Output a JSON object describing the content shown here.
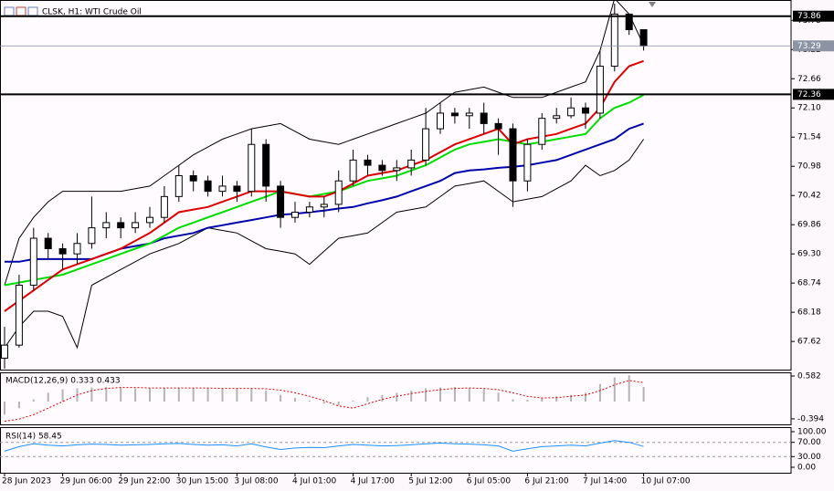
{
  "header": {
    "title": "CLSK, H1: WTI Crude Oil"
  },
  "chart_data": [
    {
      "type": "candlestick",
      "categories": [
        "28 Jun 2023",
        null,
        null,
        null,
        "29 Jun 06:00",
        null,
        null,
        null,
        "29 Jun 22:00",
        null,
        null,
        null,
        "30 Jun 15:00",
        null,
        null,
        null,
        "3 Jul 08:00",
        null,
        null,
        null,
        "4 Jul 01:00",
        null,
        null,
        null,
        "4 Jul 17:00",
        null,
        null,
        null,
        "5 Jul 12:00",
        null,
        null,
        null,
        "6 Jul 05:00",
        null,
        null,
        null,
        "6 Jul 21:00",
        null,
        null,
        null,
        "7 Jul 14:00",
        null,
        null,
        null,
        "10 Jul 07:00"
      ],
      "open": [
        67.3,
        67.55,
        68.7,
        69.6,
        69.4,
        69.3,
        69.5,
        69.8,
        69.9,
        69.8,
        69.9,
        70.0,
        70.4,
        70.8,
        70.7,
        70.5,
        70.6,
        70.5,
        71.4,
        70.6,
        70.0,
        70.1,
        70.2,
        70.25,
        70.7,
        71.1,
        71.0,
        70.9,
        70.95,
        71.1,
        71.7,
        72.0,
        71.95,
        72.0,
        71.8,
        71.7,
        70.7,
        71.4,
        71.9,
        71.95,
        72.1,
        72.0,
        72.9,
        73.9,
        73.6
      ],
      "high": [
        67.9,
        68.9,
        69.8,
        69.7,
        69.5,
        69.7,
        70.4,
        70.1,
        70.0,
        70.1,
        70.2,
        70.6,
        71.0,
        70.9,
        70.8,
        70.8,
        70.7,
        71.7,
        71.5,
        70.7,
        70.3,
        70.3,
        70.4,
        70.9,
        71.3,
        71.2,
        71.1,
        71.1,
        71.3,
        72.1,
        72.2,
        72.1,
        72.1,
        72.2,
        71.9,
        71.8,
        71.5,
        72.0,
        72.1,
        72.3,
        72.2,
        73.2,
        74.1,
        73.9,
        73.6
      ],
      "low": [
        67.1,
        67.5,
        68.6,
        69.2,
        69.0,
        69.1,
        69.4,
        69.6,
        69.6,
        69.7,
        69.8,
        69.9,
        70.3,
        70.5,
        70.4,
        70.4,
        70.3,
        70.4,
        70.3,
        69.8,
        69.9,
        70.0,
        70.0,
        70.1,
        70.6,
        70.8,
        70.8,
        70.7,
        70.8,
        71.0,
        71.6,
        71.8,
        71.7,
        71.6,
        71.2,
        70.2,
        70.5,
        71.3,
        71.8,
        71.9,
        71.7,
        71.9,
        72.8,
        73.5,
        73.2
      ],
      "close": [
        67.55,
        68.7,
        69.6,
        69.4,
        69.3,
        69.5,
        69.8,
        69.9,
        69.8,
        69.9,
        70.0,
        70.4,
        70.8,
        70.7,
        70.5,
        70.6,
        70.5,
        71.4,
        70.6,
        70.0,
        70.1,
        70.2,
        70.25,
        70.7,
        71.1,
        71.0,
        70.9,
        70.95,
        71.1,
        71.7,
        72.0,
        71.95,
        72.0,
        71.8,
        71.7,
        70.7,
        71.4,
        71.9,
        71.95,
        72.1,
        72.0,
        72.9,
        73.9,
        73.6,
        73.29
      ],
      "series": [
        {
          "color": "#000000",
          "values": [
            68.7,
            69.6,
            70.0,
            70.3,
            70.5,
            70.5,
            70.5,
            70.5,
            70.5,
            70.55,
            70.6,
            70.8,
            71.0,
            71.2,
            71.35,
            71.5,
            71.6,
            71.7,
            71.75,
            71.8,
            71.65,
            71.5,
            71.45,
            71.4,
            71.5,
            71.6,
            71.7,
            71.8,
            71.9,
            72.0,
            72.2,
            72.4,
            72.45,
            72.5,
            72.4,
            72.3,
            72.3,
            72.3,
            72.4,
            72.5,
            72.6,
            73.2,
            74.2,
            73.9,
            73.3
          ]
        },
        {
          "color": "#000000",
          "values": [
            67.5,
            67.9,
            68.2,
            68.2,
            68.1,
            67.5,
            68.7,
            68.85,
            69.0,
            69.15,
            69.3,
            69.4,
            69.5,
            69.65,
            69.8,
            69.75,
            69.7,
            69.55,
            69.4,
            69.35,
            69.3,
            69.1,
            69.35,
            69.6,
            69.65,
            69.7,
            69.9,
            70.1,
            70.15,
            70.2,
            70.4,
            70.6,
            70.65,
            70.7,
            70.5,
            70.3,
            70.35,
            70.4,
            70.55,
            70.7,
            71.0,
            70.8,
            70.9,
            71.1,
            71.5
          ]
        },
        {
          "color": "#0000aa",
          "values": [
            69.15,
            69.15,
            69.2,
            69.2,
            69.2,
            69.2,
            69.2,
            69.3,
            69.4,
            69.45,
            69.5,
            69.6,
            69.65,
            69.7,
            69.8,
            69.85,
            69.9,
            69.95,
            70.0,
            70.05,
            70.07,
            70.1,
            70.13,
            70.17,
            70.2,
            70.27,
            70.33,
            70.4,
            70.5,
            70.6,
            70.7,
            70.85,
            70.9,
            70.92,
            70.95,
            70.97,
            71.0,
            71.05,
            71.1,
            71.2,
            71.3,
            71.4,
            71.5,
            71.7,
            71.8
          ]
        },
        {
          "color": "#00dd00",
          "values": [
            68.7,
            68.75,
            68.8,
            68.85,
            68.9,
            69.0,
            69.1,
            69.2,
            69.3,
            69.4,
            69.5,
            69.65,
            69.8,
            69.9,
            70.0,
            70.1,
            70.2,
            70.3,
            70.4,
            70.5,
            70.45,
            70.4,
            70.45,
            70.5,
            70.6,
            70.7,
            70.75,
            70.8,
            70.9,
            71.0,
            71.15,
            71.3,
            71.4,
            71.45,
            71.5,
            71.45,
            71.4,
            71.45,
            71.5,
            71.55,
            71.6,
            71.9,
            72.1,
            72.2,
            72.35
          ]
        },
        {
          "color": "#dd0000",
          "values": [
            68.2,
            68.4,
            68.6,
            68.8,
            69.0,
            69.1,
            69.2,
            69.3,
            69.4,
            69.55,
            69.7,
            69.9,
            70.1,
            70.15,
            70.2,
            70.3,
            70.4,
            70.5,
            70.5,
            70.5,
            70.45,
            70.4,
            70.4,
            70.5,
            70.65,
            70.8,
            70.85,
            70.9,
            71.0,
            71.1,
            71.25,
            71.4,
            71.5,
            71.6,
            71.7,
            71.4,
            71.5,
            71.55,
            71.6,
            71.7,
            71.8,
            72.1,
            72.6,
            72.9,
            73.0
          ]
        }
      ],
      "ylim": [
        67.08,
        74.17
      ],
      "yticks": [
        67.62,
        68.18,
        68.74,
        {
          "value": 69.3,
          "label": "69.30"
        },
        69.86,
        70.42,
        70.98,
        71.54,
        {
          "value": 72.1,
          "label": "72.10"
        },
        72.66,
        73.22,
        73.78
      ],
      "hlines": [
        73.86,
        72.36
      ],
      "current_price": 73.29
    },
    {
      "type": "macd",
      "title": "MACD(12,26,9) 0.333 0.433",
      "values": [
        -0.3,
        -0.15,
        0.05,
        0.2,
        0.28,
        0.3,
        0.32,
        0.33,
        0.32,
        0.3,
        0.3,
        0.31,
        0.32,
        0.31,
        0.3,
        0.3,
        0.29,
        0.3,
        0.25,
        0.15,
        0.08,
        0.02,
        -0.05,
        -0.08,
        0.02,
        0.1,
        0.15,
        0.2,
        0.25,
        0.3,
        0.32,
        0.33,
        0.3,
        0.28,
        0.2,
        0.05,
        0.04,
        0.08,
        0.12,
        0.15,
        0.2,
        0.4,
        0.55,
        0.6,
        0.333
      ],
      "signal": [
        -0.45,
        -0.4,
        -0.3,
        -0.15,
        0.0,
        0.15,
        0.25,
        0.3,
        0.32,
        0.32,
        0.31,
        0.31,
        0.31,
        0.31,
        0.31,
        0.3,
        0.3,
        0.3,
        0.29,
        0.26,
        0.2,
        0.12,
        0.02,
        -0.1,
        -0.15,
        -0.05,
        0.05,
        0.12,
        0.18,
        0.23,
        0.27,
        0.3,
        0.31,
        0.3,
        0.27,
        0.2,
        0.12,
        0.08,
        0.09,
        0.12,
        0.15,
        0.25,
        0.38,
        0.48,
        0.433
      ],
      "color": "#b4b4b4",
      "signal_color": "#dd0000",
      "ylim": [
        -0.52,
        0.665
      ],
      "yticks": [
        0.582,
        -0.394
      ]
    },
    {
      "type": "line",
      "title": "RSI(14) 58.45",
      "color": "#1e90ff",
      "values": [
        45,
        58,
        66,
        62,
        60,
        63,
        65,
        64,
        62,
        63,
        64,
        66,
        67,
        64,
        62,
        63,
        60,
        66,
        57,
        50,
        54,
        56,
        55,
        60,
        64,
        62,
        60,
        61,
        63,
        66,
        68,
        66,
        65,
        63,
        60,
        45,
        52,
        58,
        60,
        62,
        60,
        68,
        75,
        70,
        58.45
      ],
      "ylim": [
        -15.4,
        112.8
      ],
      "yticks": [
        {
          "value": 100,
          "label": "100.00"
        },
        {
          "value": 70,
          "label": "70.00"
        },
        {
          "value": 30,
          "label": "30.00"
        },
        {
          "value": 0,
          "label": "0.00"
        }
      ],
      "levels": [
        70,
        30
      ]
    }
  ]
}
